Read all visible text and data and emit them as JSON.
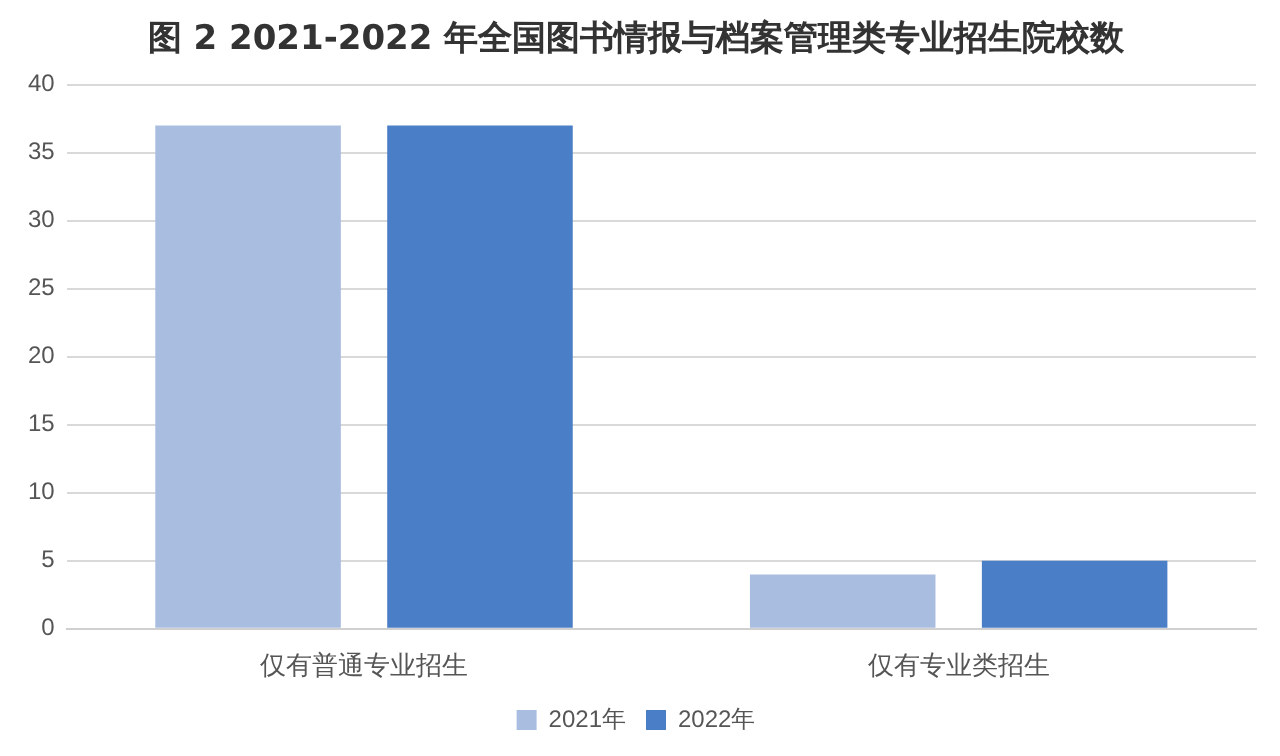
{
  "chart_data": {
    "type": "bar",
    "title": "图 2 2021-2022 年全国图书情报与档案管理类专业招生院校数",
    "categories": [
      "仅有普通专业招生",
      "仅有专业类招生"
    ],
    "series": [
      {
        "name": "2021年",
        "color": "#a9bde0",
        "values": [
          37,
          4
        ]
      },
      {
        "name": "2022年",
        "color": "#4a7ec6",
        "values": [
          37,
          5
        ]
      }
    ],
    "ylim": [
      0,
      40
    ],
    "yticks": [
      0,
      5,
      10,
      15,
      20,
      25,
      30,
      35,
      40
    ],
    "grid": "y",
    "legend": "bottom"
  }
}
